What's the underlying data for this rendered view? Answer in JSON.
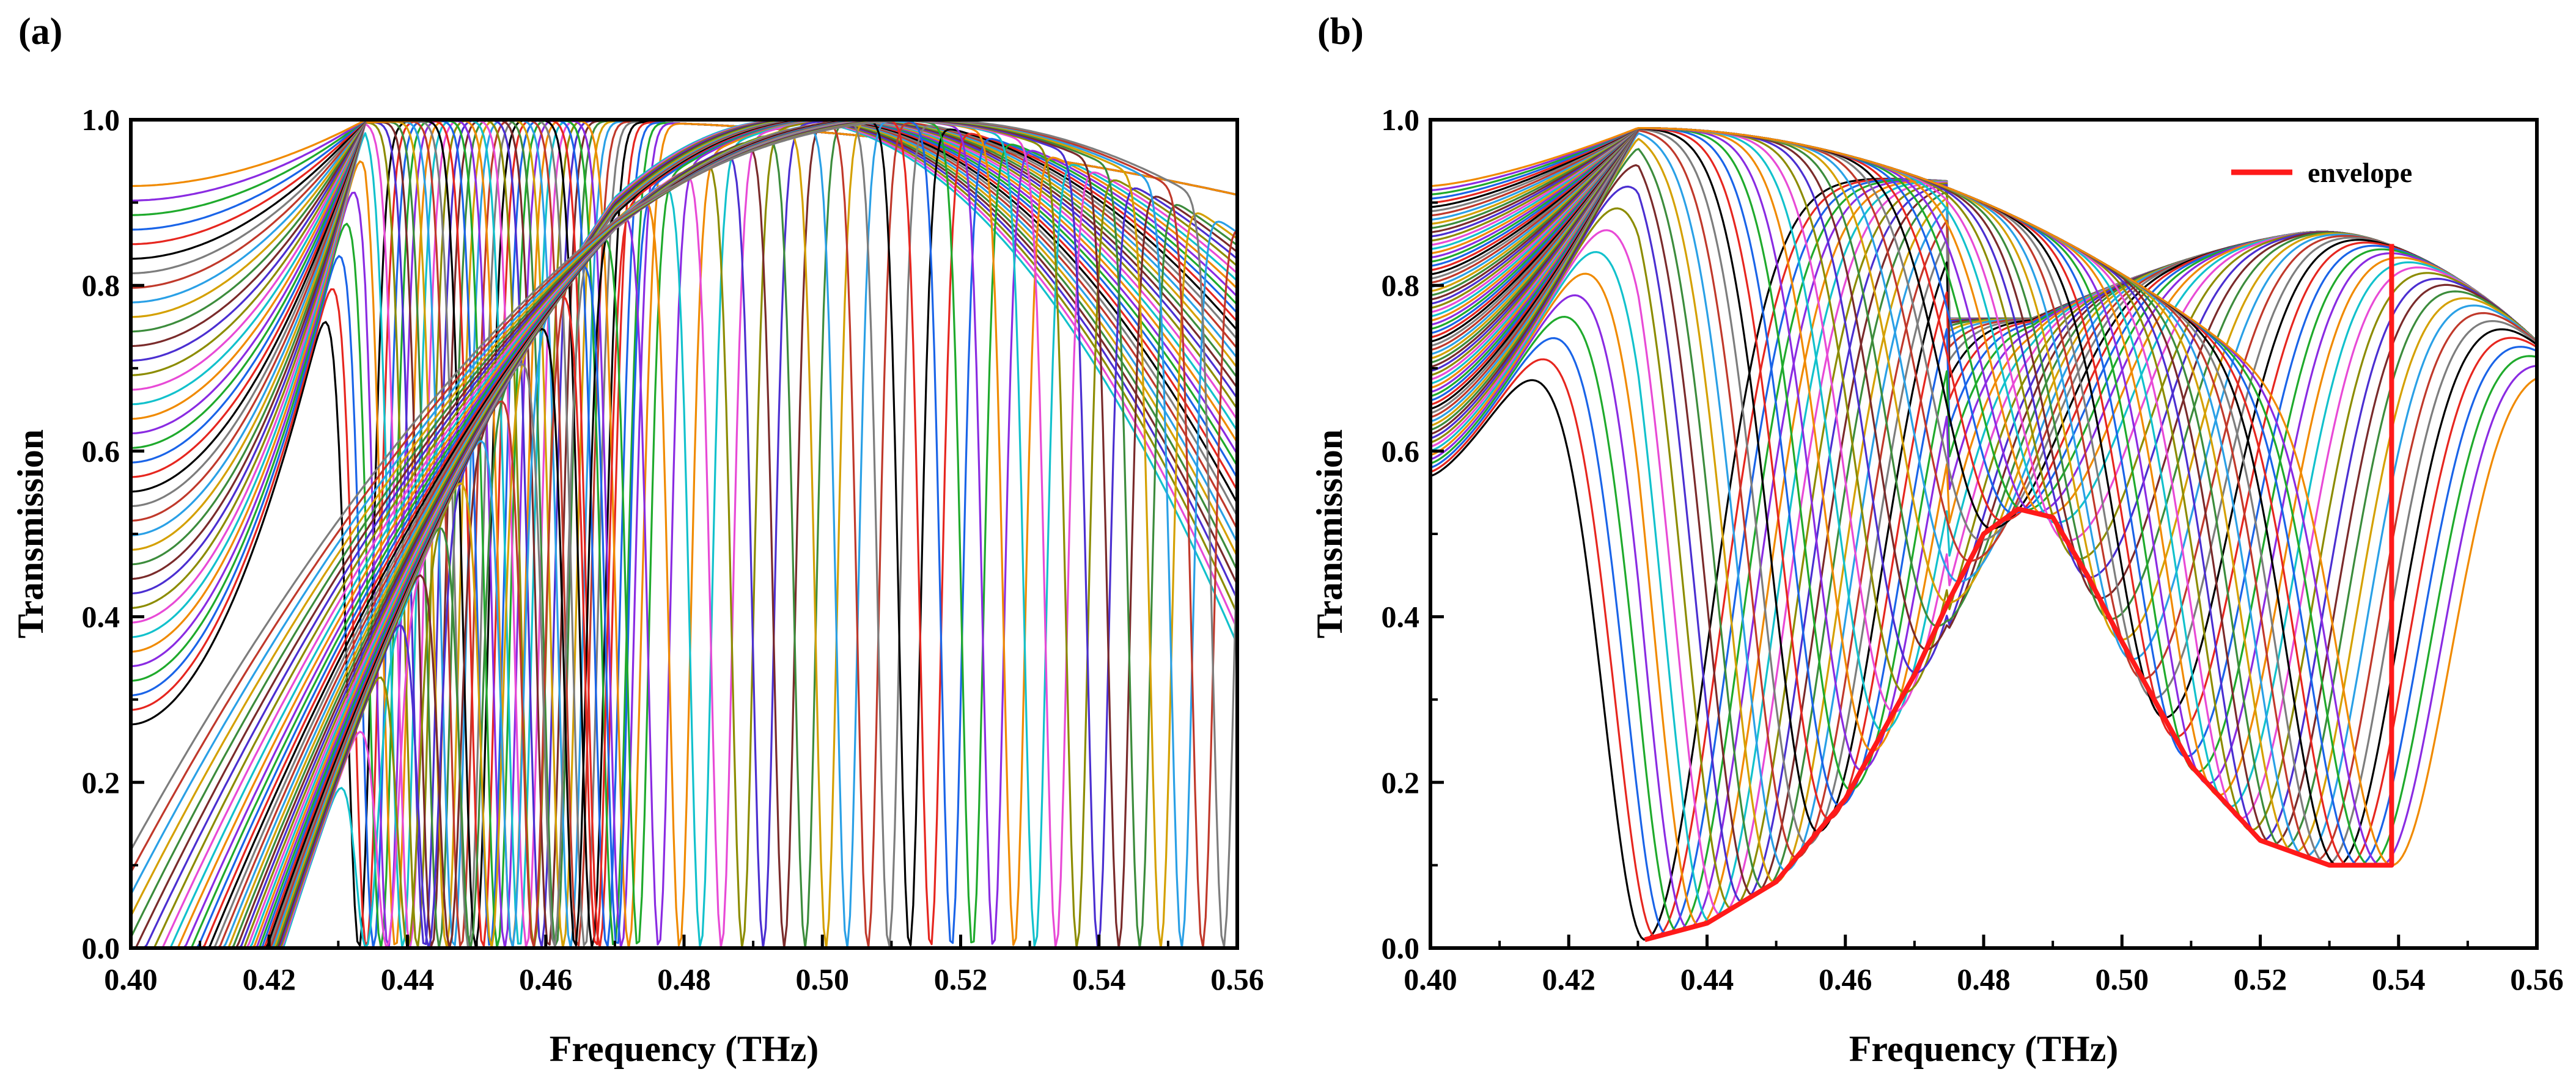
{
  "figure": {
    "panels": [
      "(a)",
      "(b)"
    ]
  },
  "colors": {
    "palette": [
      "#000000",
      "#e6261f",
      "#1a64e8",
      "#1faa2c",
      "#8a2be2",
      "#f08a00",
      "#12c1cc",
      "#e84ad6",
      "#8c8c00",
      "#4b2fd1",
      "#7a2b2b",
      "#3c8c3c",
      "#d4a000",
      "#2aa0e6",
      "#c0392b",
      "#7d7d7d"
    ],
    "envelope": "#ff1a1a"
  },
  "chart_data": [
    {
      "type": "line",
      "panel": "(a)",
      "title": "",
      "xlabel": "Frequency (THz)",
      "ylabel": "Transmission",
      "xlim": [
        0.4,
        0.56
      ],
      "ylim": [
        0.0,
        1.0
      ],
      "xticks": [
        "0.40",
        "0.42",
        "0.44",
        "0.46",
        "0.48",
        "0.50",
        "0.52",
        "0.54",
        "0.56"
      ],
      "yticks": [
        "0.0",
        "0.2",
        "0.4",
        "0.6",
        "0.8",
        "1.0"
      ],
      "series_description": "Family of ~80 resonance curves; each has a sharp transmission dip to 0 at a frequency stepping from 0.433 to 0.558 THz",
      "groups": [
        {
          "name": "left-edge family",
          "count": 38,
          "dip_start": 0.433,
          "dip_end": 0.472,
          "peak_center": 0.455,
          "start_y_at_0.40": [
            0.27,
            0.92
          ]
        },
        {
          "name": "right family",
          "count": 42,
          "dip_start": 0.434,
          "dip_end": 0.558,
          "peak_center": 0.505,
          "peak_y": 1.0
        }
      ],
      "grid": false,
      "legend": null
    },
    {
      "type": "line",
      "panel": "(b)",
      "title": "",
      "xlabel": "Frequency (THz)",
      "ylabel": "Transmission",
      "xlim": [
        0.4,
        0.56
      ],
      "ylim": [
        0.0,
        1.0
      ],
      "xticks": [
        "0.40",
        "0.42",
        "0.44",
        "0.46",
        "0.48",
        "0.50",
        "0.52",
        "0.54",
        "0.56"
      ],
      "yticks": [
        "0.0",
        "0.2",
        "0.4",
        "0.6",
        "0.8",
        "1.0"
      ],
      "series_description": "Family of ~70 resonance curves with dips between 0.431 and 0.539 THz plus a thick red envelope of the dip minima",
      "curve_dip_range": [
        0.431,
        0.539
      ],
      "curve_count": 70,
      "envelope": {
        "name": "envelope",
        "x": [
          0.431,
          0.44,
          0.45,
          0.46,
          0.47,
          0.475,
          0.48,
          0.485,
          0.49,
          0.495,
          0.5,
          0.51,
          0.52,
          0.53,
          0.539,
          0.539
        ],
        "y": [
          0.01,
          0.03,
          0.08,
          0.18,
          0.33,
          0.42,
          0.5,
          0.53,
          0.52,
          0.45,
          0.37,
          0.22,
          0.13,
          0.1,
          0.1,
          0.85
        ]
      },
      "grid": false,
      "legend": {
        "entries": [
          "envelope"
        ],
        "position": "top-right"
      }
    }
  ]
}
